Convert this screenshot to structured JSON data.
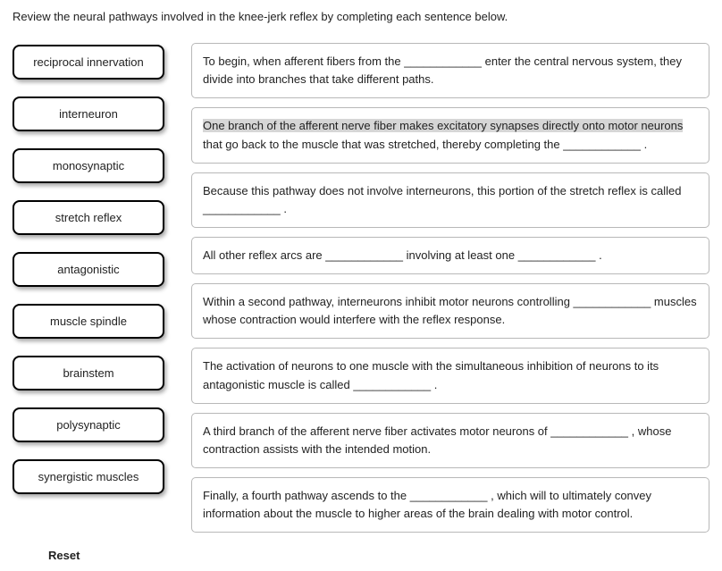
{
  "instruction": "Review the neural pathways involved in the knee-jerk reflex by completing each sentence below.",
  "terms": [
    "reciprocal innervation",
    "interneuron",
    "monosynaptic",
    "stretch reflex",
    "antagonistic",
    "muscle spindle",
    "brainstem",
    "polysynaptic",
    "synergistic muscles"
  ],
  "sentences": {
    "s1_a": "To begin, when afferent fibers from the ",
    "s1_b": "____________",
    "s1_c": " enter the central nervous system, they divide into branches that take different paths.",
    "s2_hl": "One branch of the afferent nerve fiber makes excitatory synapses directly onto motor neurons",
    "s2_rest": " that go back to the muscle that was stretched, thereby completing the ",
    "s2_blank": "____________",
    "s2_end": " .",
    "s3_a": "Because this pathway does not involve interneurons, this portion of the stretch reflex is called ",
    "s3_b": "____________",
    "s3_c": " .",
    "s4_a": "All other reflex arcs are ",
    "s4_b": "____________",
    "s4_c": " involving at least one ",
    "s4_d": "____________",
    "s4_e": " .",
    "s5_a": "Within a second pathway, interneurons inhibit motor neurons controlling ",
    "s5_b": "____________",
    "s5_c": " muscles whose contraction would interfere with the reflex response.",
    "s6_a": "The activation of neurons to one muscle with the simultaneous inhibition of neurons to its antagonistic muscle is called ",
    "s6_b": "____________",
    "s6_c": " .",
    "s7_a": "A third branch of the afferent nerve fiber activates motor neurons of ",
    "s7_b": "____________",
    "s7_c": " , whose contraction assists with the intended motion.",
    "s8_a": "Finally, a fourth pathway ascends to the ",
    "s8_b": "____________",
    "s8_c": " , which will to ultimately convey information about the muscle to higher areas of the brain dealing with motor control."
  },
  "reset_label": "Reset"
}
